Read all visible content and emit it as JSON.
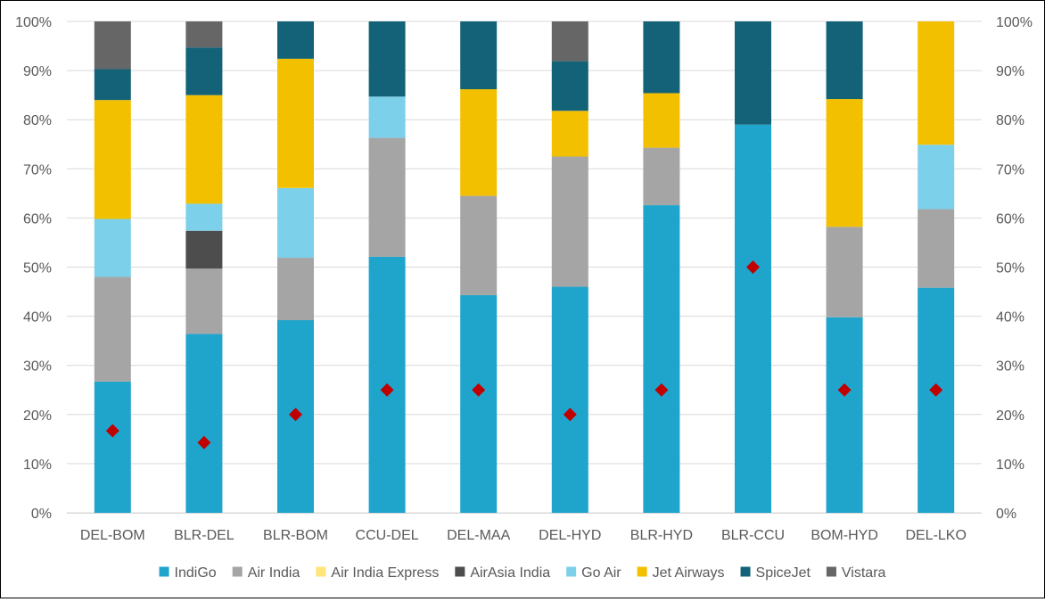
{
  "chart_data": {
    "type": "bar",
    "stacked": true,
    "normalized": true,
    "categories": [
      "DEL-BOM",
      "BLR-DEL",
      "BLR-BOM",
      "CCU-DEL",
      "DEL-MAA",
      "DEL-HYD",
      "BLR-HYD",
      "BLR-CCU",
      "BOM-HYD",
      "DEL-LKO"
    ],
    "y_ticks": [
      "0%",
      "10%",
      "20%",
      "30%",
      "40%",
      "50%",
      "60%",
      "70%",
      "80%",
      "90%",
      "100%"
    ],
    "ylim": [
      0,
      100
    ],
    "secondary_y_ticks": [
      "0%",
      "10%",
      "20%",
      "30%",
      "40%",
      "50%",
      "60%",
      "70%",
      "80%",
      "90%",
      "100%"
    ],
    "grid": true,
    "legend_position": "bottom",
    "series": [
      {
        "name": "IndiGo",
        "color": "#1fa5cc",
        "values": [
          26.7,
          36.4,
          39.2,
          52.1,
          44.3,
          46.0,
          62.6,
          79.0,
          39.8,
          45.8
        ]
      },
      {
        "name": "Air India",
        "color": "#a5a5a5",
        "values": [
          21.3,
          13.3,
          12.7,
          24.2,
          20.2,
          26.5,
          11.7,
          0,
          18.4,
          16.0
        ]
      },
      {
        "name": "Air India Express",
        "color": "#ffe57a",
        "values": [
          0,
          0,
          0,
          0,
          0,
          0,
          0,
          0,
          0,
          0
        ]
      },
      {
        "name": "AirAsia India",
        "color": "#4d4d4d",
        "values": [
          0,
          7.7,
          0,
          0,
          0,
          0,
          0,
          0,
          0,
          0
        ]
      },
      {
        "name": "Go Air",
        "color": "#7dd0ea",
        "values": [
          11.8,
          5.5,
          14.2,
          8.4,
          0,
          0,
          0,
          0,
          0,
          13.1
        ]
      },
      {
        "name": "Jet Airways",
        "color": "#f3c000",
        "values": [
          24.2,
          22.1,
          26.3,
          0,
          21.7,
          9.3,
          11.1,
          0,
          26.0,
          25.1
        ]
      },
      {
        "name": "SpiceJet",
        "color": "#146277",
        "values": [
          6.3,
          9.7,
          7.6,
          15.3,
          13.8,
          10.1,
          14.6,
          21.0,
          15.8,
          0
        ]
      },
      {
        "name": "Vistara",
        "color": "#666666",
        "values": [
          9.7,
          5.3,
          0,
          0,
          0,
          8.1,
          0,
          0,
          0,
          0
        ]
      }
    ],
    "marker_series": {
      "color": "#c00000",
      "shape": "diamond",
      "values": [
        16.7,
        14.3,
        20.0,
        25.0,
        25.0,
        20.0,
        25.0,
        50.0,
        25.0,
        25.0
      ]
    }
  }
}
